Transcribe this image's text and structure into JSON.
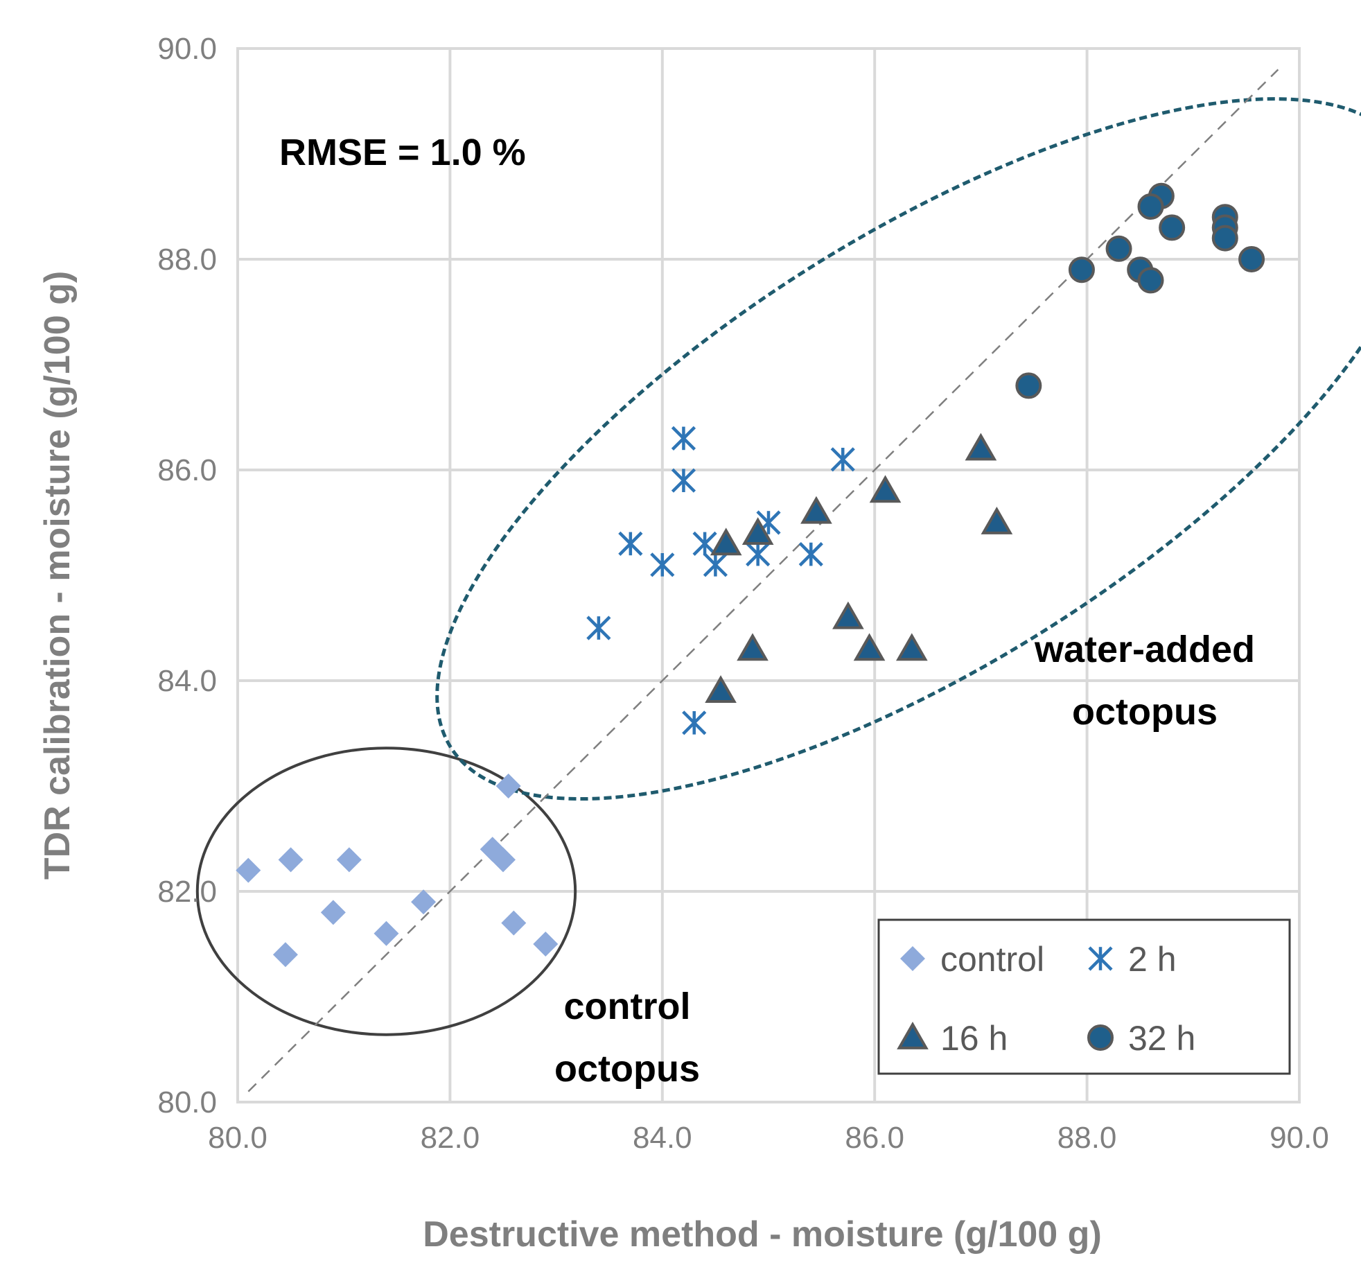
{
  "chart_data": {
    "type": "scatter",
    "xlabel": "Destructive method - moisture (g/100 g)",
    "ylabel": "TDR calibration - moisture (g/100 g)",
    "xlim": [
      80,
      90
    ],
    "ylim": [
      80,
      90
    ],
    "xticks": [
      "80.0",
      "82.0",
      "84.0",
      "86.0",
      "88.0",
      "90.0"
    ],
    "yticks": [
      "80.0",
      "82.0",
      "84.0",
      "86.0",
      "88.0",
      "90.0"
    ],
    "grid": true,
    "legend_position": "bottom-right",
    "reference_line": {
      "from": [
        80.1,
        80.1
      ],
      "to": [
        89.8,
        89.8
      ],
      "style": "dashed"
    },
    "annotations": {
      "rmse": "RMSE = 1.0 %",
      "control_line1": "control",
      "control_line2": "octopus",
      "water_line1": "water-added",
      "water_line2": "octopus"
    },
    "ellipses": [
      {
        "name": "control",
        "cx": 81.4,
        "cy": 82.0,
        "rx": 1.78,
        "ry": 1.36,
        "rotate": 0,
        "style": "solid"
      },
      {
        "name": "water-added",
        "cx": 86.5,
        "cy": 86.2,
        "rx": 5.3,
        "ry": 2.05,
        "rotate": -32,
        "style": "dashed"
      }
    ],
    "series": [
      {
        "name": "control",
        "marker": "diamond",
        "color": "#8eaadb",
        "points": [
          [
            80.1,
            82.2
          ],
          [
            80.5,
            82.3
          ],
          [
            81.05,
            82.3
          ],
          [
            80.45,
            81.4
          ],
          [
            80.9,
            81.8
          ],
          [
            81.4,
            81.6
          ],
          [
            81.75,
            81.9
          ],
          [
            82.55,
            83.0
          ],
          [
            82.4,
            82.4
          ],
          [
            82.5,
            82.3
          ],
          [
            82.6,
            81.7
          ],
          [
            82.9,
            81.5
          ]
        ]
      },
      {
        "name": "2 h",
        "marker": "asterisk",
        "color": "#2e75b6",
        "points": [
          [
            84.2,
            86.3
          ],
          [
            84.2,
            85.9
          ],
          [
            85.7,
            86.1
          ],
          [
            83.7,
            85.3
          ],
          [
            84.0,
            85.1
          ],
          [
            84.4,
            85.3
          ],
          [
            84.5,
            85.1
          ],
          [
            85.0,
            85.5
          ],
          [
            84.9,
            85.2
          ],
          [
            85.4,
            85.2
          ],
          [
            83.4,
            84.5
          ],
          [
            84.3,
            83.6
          ]
        ]
      },
      {
        "name": "16 h",
        "marker": "triangle",
        "color": "#1f5c8a",
        "points": [
          [
            84.6,
            85.3
          ],
          [
            84.9,
            85.4
          ],
          [
            85.45,
            85.6
          ],
          [
            86.1,
            85.8
          ],
          [
            87.0,
            86.2
          ],
          [
            87.15,
            85.5
          ],
          [
            85.75,
            84.6
          ],
          [
            84.85,
            84.3
          ],
          [
            85.95,
            84.3
          ],
          [
            86.35,
            84.3
          ],
          [
            84.55,
            83.9
          ]
        ]
      },
      {
        "name": "32 h",
        "marker": "circle",
        "color": "#1f5f8b",
        "points": [
          [
            88.7,
            88.6
          ],
          [
            88.6,
            88.5
          ],
          [
            88.8,
            88.3
          ],
          [
            89.3,
            88.4
          ],
          [
            89.3,
            88.3
          ],
          [
            89.3,
            88.2
          ],
          [
            88.3,
            88.1
          ],
          [
            88.5,
            87.9
          ],
          [
            88.6,
            87.8
          ],
          [
            87.95,
            87.9
          ],
          [
            89.55,
            88.0
          ],
          [
            87.45,
            86.8
          ]
        ]
      }
    ],
    "legend": [
      {
        "label": "control",
        "marker": "diamond"
      },
      {
        "label": "2 h",
        "marker": "asterisk"
      },
      {
        "label": "16 h",
        "marker": "triangle"
      },
      {
        "label": "32 h",
        "marker": "circle"
      }
    ]
  }
}
